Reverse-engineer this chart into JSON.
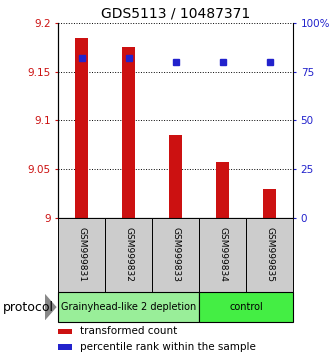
{
  "title": "GDS5113 / 10487371",
  "samples": [
    "GSM999831",
    "GSM999832",
    "GSM999833",
    "GSM999834",
    "GSM999835"
  ],
  "transformed_counts": [
    9.185,
    9.175,
    9.085,
    9.057,
    9.03
  ],
  "percentile_ranks": [
    82,
    82,
    80,
    80,
    80
  ],
  "ylim_left": [
    9.0,
    9.2
  ],
  "ylim_right": [
    0,
    100
  ],
  "yticks_left": [
    9.0,
    9.05,
    9.1,
    9.15,
    9.2
  ],
  "yticks_right": [
    0,
    25,
    50,
    75,
    100
  ],
  "ytick_labels_left": [
    "9",
    "9.05",
    "9.1",
    "9.15",
    "9.2"
  ],
  "ytick_labels_right": [
    "0",
    "25",
    "50",
    "75",
    "100%"
  ],
  "bar_color": "#cc1111",
  "square_color": "#2222cc",
  "groups": [
    {
      "label": "Grainyhead-like 2 depletion",
      "indices": [
        0,
        1,
        2
      ],
      "color": "#99ee99"
    },
    {
      "label": "control",
      "indices": [
        3,
        4
      ],
      "color": "#44ee44"
    }
  ],
  "protocol_label": "protocol",
  "legend_items": [
    {
      "color": "#cc1111",
      "label": "transformed count"
    },
    {
      "color": "#2222cc",
      "label": "percentile rank within the sample"
    }
  ],
  "background_color": "#ffffff",
  "title_fontsize": 10,
  "tick_fontsize": 7.5,
  "sample_fontsize": 6.5,
  "group_fontsize": 7,
  "legend_fontsize": 7.5,
  "protocol_fontsize": 9
}
